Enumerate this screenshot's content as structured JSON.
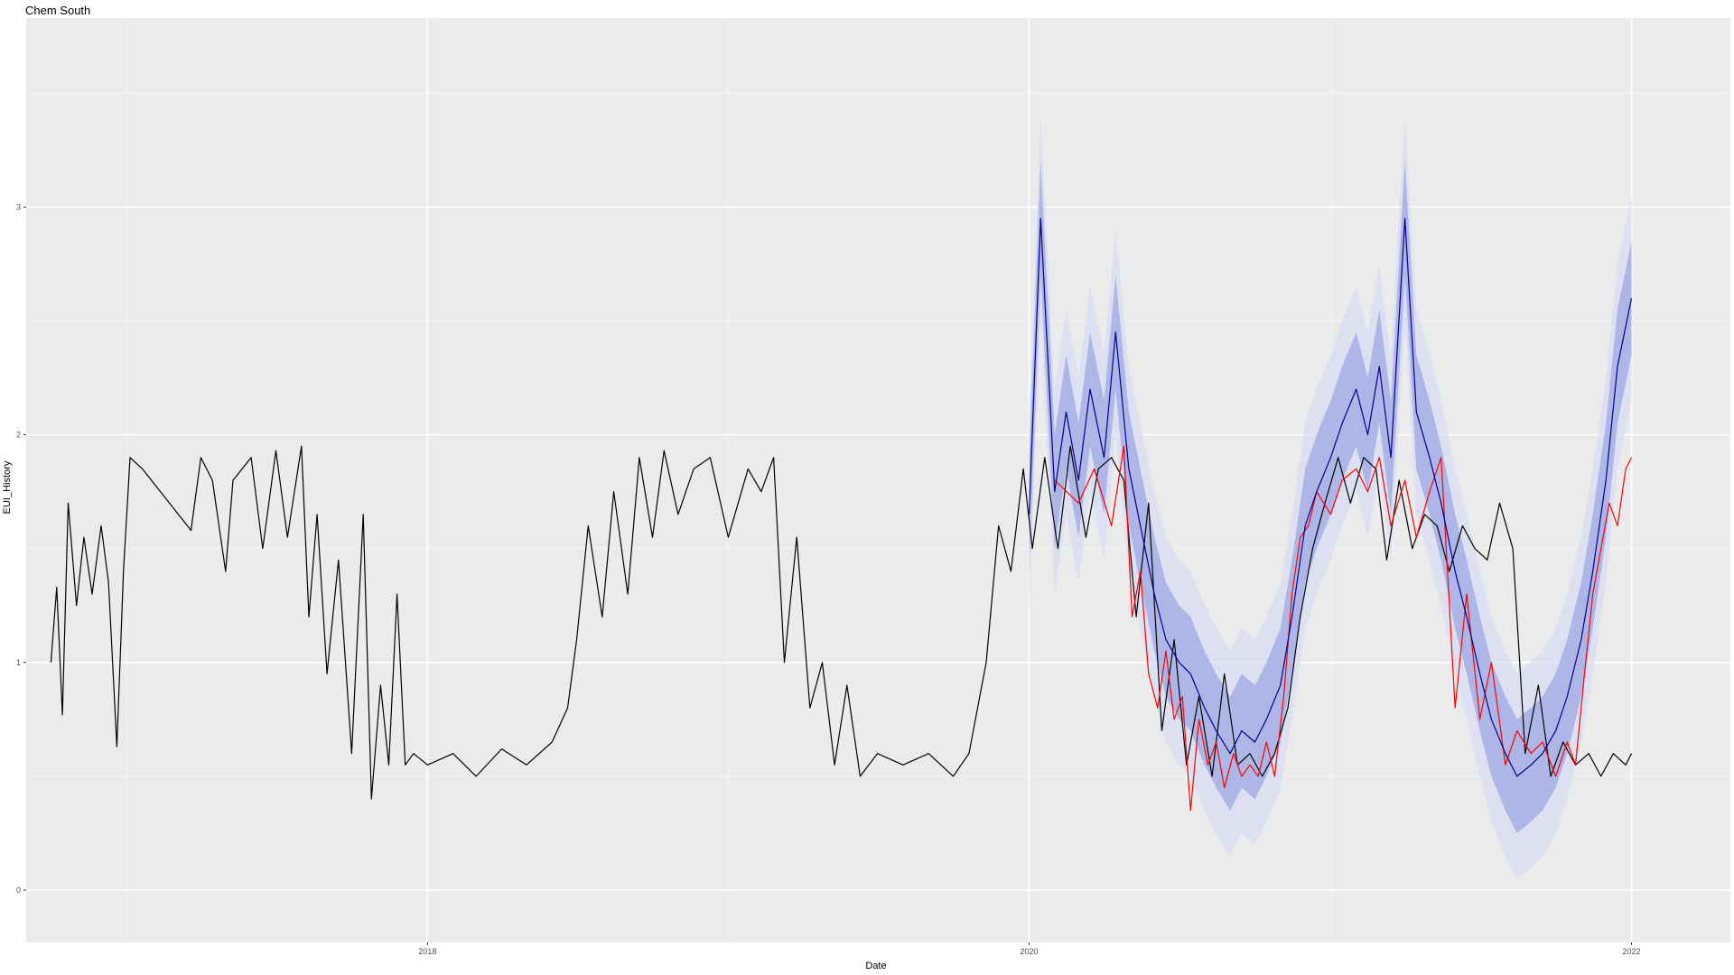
{
  "chart_data": {
    "type": "line",
    "title": "Chem South",
    "xlabel": "Date",
    "ylabel": "EUI_History",
    "x_range": [
      "2016-09-01",
      "2022-05-01"
    ],
    "ylim": [
      -0.23,
      3.83
    ],
    "x_ticks": [
      {
        "date": "2018-01-01",
        "label": "2018"
      },
      {
        "date": "2020-01-01",
        "label": "2020"
      },
      {
        "date": "2022-01-01",
        "label": "2022"
      }
    ],
    "x_minor_ticks": [
      "2017-01-01",
      "2019-01-01",
      "2021-01-01"
    ],
    "y_ticks": [
      0,
      1,
      2,
      3
    ],
    "y_minor_ticks": [
      0.5,
      1.5,
      2.5,
      3.5
    ],
    "grid": true,
    "background": "#ebebeb",
    "series": [
      {
        "color": "#000000",
        "role": "history",
        "points": [
          [
            "2016-10-01",
            1.0
          ],
          [
            "2016-10-08",
            1.33
          ],
          [
            "2016-10-15",
            0.77
          ],
          [
            "2016-10-22",
            1.7
          ],
          [
            "2016-11-01",
            1.25
          ],
          [
            "2016-11-10",
            1.55
          ],
          [
            "2016-11-20",
            1.3
          ],
          [
            "2016-12-01",
            1.6
          ],
          [
            "2016-12-10",
            1.35
          ],
          [
            "2016-12-20",
            0.63
          ],
          [
            "2016-12-28",
            1.4
          ],
          [
            "2017-01-05",
            1.9
          ],
          [
            "2017-01-20",
            1.85
          ],
          [
            "2017-03-20",
            1.58
          ],
          [
            "2017-04-01",
            1.9
          ],
          [
            "2017-04-15",
            1.8
          ],
          [
            "2017-05-01",
            1.4
          ],
          [
            "2017-05-10",
            1.8
          ],
          [
            "2017-06-01",
            1.9
          ],
          [
            "2017-06-15",
            1.5
          ],
          [
            "2017-07-01",
            1.93
          ],
          [
            "2017-07-15",
            1.55
          ],
          [
            "2017-08-01",
            1.95
          ],
          [
            "2017-08-10",
            1.2
          ],
          [
            "2017-08-20",
            1.65
          ],
          [
            "2017-09-01",
            0.95
          ],
          [
            "2017-09-15",
            1.45
          ],
          [
            "2017-10-01",
            0.6
          ],
          [
            "2017-10-15",
            1.65
          ],
          [
            "2017-10-25",
            0.4
          ],
          [
            "2017-11-05",
            0.9
          ],
          [
            "2017-11-15",
            0.55
          ],
          [
            "2017-11-25",
            1.3
          ],
          [
            "2017-12-05",
            0.55
          ],
          [
            "2017-12-15",
            0.6
          ],
          [
            "2018-01-01",
            0.55
          ],
          [
            "2018-02-01",
            0.6
          ],
          [
            "2018-03-01",
            0.5
          ],
          [
            "2018-04-01",
            0.62
          ],
          [
            "2018-05-01",
            0.55
          ],
          [
            "2018-06-01",
            0.65
          ],
          [
            "2018-06-20",
            0.8
          ],
          [
            "2018-07-01",
            1.1
          ],
          [
            "2018-07-15",
            1.6
          ],
          [
            "2018-08-01",
            1.2
          ],
          [
            "2018-08-15",
            1.75
          ],
          [
            "2018-09-01",
            1.3
          ],
          [
            "2018-09-15",
            1.9
          ],
          [
            "2018-10-01",
            1.55
          ],
          [
            "2018-10-15",
            1.93
          ],
          [
            "2018-11-01",
            1.65
          ],
          [
            "2018-11-20",
            1.85
          ],
          [
            "2018-12-10",
            1.9
          ],
          [
            "2019-01-01",
            1.55
          ],
          [
            "2019-01-25",
            1.85
          ],
          [
            "2019-02-10",
            1.75
          ],
          [
            "2019-02-25",
            1.9
          ],
          [
            "2019-03-10",
            1.0
          ],
          [
            "2019-03-25",
            1.55
          ],
          [
            "2019-04-10",
            0.8
          ],
          [
            "2019-04-25",
            1.0
          ],
          [
            "2019-05-10",
            0.55
          ],
          [
            "2019-05-25",
            0.9
          ],
          [
            "2019-06-10",
            0.5
          ],
          [
            "2019-07-01",
            0.6
          ],
          [
            "2019-08-01",
            0.55
          ],
          [
            "2019-09-01",
            0.6
          ],
          [
            "2019-10-01",
            0.5
          ],
          [
            "2019-10-20",
            0.6
          ],
          [
            "2019-11-10",
            1.0
          ],
          [
            "2019-11-25",
            1.6
          ],
          [
            "2019-12-10",
            1.4
          ],
          [
            "2019-12-25",
            1.85
          ],
          [
            "2020-01-05",
            1.5
          ],
          [
            "2020-01-20",
            1.9
          ],
          [
            "2020-02-05",
            1.5
          ],
          [
            "2020-02-20",
            1.95
          ],
          [
            "2020-03-10",
            1.55
          ],
          [
            "2020-03-25",
            1.85
          ],
          [
            "2020-04-10",
            1.9
          ],
          [
            "2020-04-25",
            1.8
          ],
          [
            "2020-05-10",
            1.2
          ],
          [
            "2020-05-25",
            1.7
          ],
          [
            "2020-06-10",
            0.7
          ],
          [
            "2020-06-25",
            1.1
          ],
          [
            "2020-07-10",
            0.55
          ],
          [
            "2020-07-25",
            0.85
          ],
          [
            "2020-08-10",
            0.5
          ],
          [
            "2020-08-25",
            0.95
          ],
          [
            "2020-09-10",
            0.55
          ],
          [
            "2020-09-25",
            0.6
          ],
          [
            "2020-10-10",
            0.5
          ],
          [
            "2020-10-25",
            0.6
          ],
          [
            "2020-11-10",
            0.8
          ],
          [
            "2020-11-25",
            1.2
          ],
          [
            "2020-12-10",
            1.5
          ],
          [
            "2020-12-25",
            1.7
          ],
          [
            "2021-01-10",
            1.9
          ],
          [
            "2021-01-25",
            1.7
          ],
          [
            "2021-02-10",
            1.9
          ],
          [
            "2021-02-25",
            1.85
          ],
          [
            "2021-03-10",
            1.45
          ],
          [
            "2021-03-25",
            1.8
          ],
          [
            "2021-04-10",
            1.5
          ],
          [
            "2021-04-25",
            1.65
          ],
          [
            "2021-05-10",
            1.6
          ],
          [
            "2021-05-25",
            1.4
          ],
          [
            "2021-06-10",
            1.6
          ],
          [
            "2021-06-25",
            1.5
          ],
          [
            "2021-07-10",
            1.45
          ],
          [
            "2021-07-25",
            1.7
          ],
          [
            "2021-08-10",
            1.5
          ],
          [
            "2021-08-25",
            0.6
          ],
          [
            "2021-09-10",
            0.9
          ],
          [
            "2021-09-25",
            0.5
          ],
          [
            "2021-10-10",
            0.65
          ],
          [
            "2021-10-25",
            0.55
          ],
          [
            "2021-11-10",
            0.6
          ],
          [
            "2021-11-25",
            0.5
          ],
          [
            "2021-12-10",
            0.6
          ],
          [
            "2021-12-25",
            0.55
          ],
          [
            "2022-01-01",
            0.6
          ]
        ]
      },
      {
        "color": "#ff0000",
        "role": "actual",
        "points": [
          [
            "2020-02-01",
            1.8
          ],
          [
            "2020-03-01",
            1.7
          ],
          [
            "2020-03-20",
            1.85
          ],
          [
            "2020-04-10",
            1.6
          ],
          [
            "2020-04-25",
            1.95
          ],
          [
            "2020-05-05",
            1.2
          ],
          [
            "2020-05-15",
            1.4
          ],
          [
            "2020-05-25",
            0.95
          ],
          [
            "2020-06-05",
            0.8
          ],
          [
            "2020-06-15",
            1.05
          ],
          [
            "2020-06-25",
            0.75
          ],
          [
            "2020-07-05",
            0.85
          ],
          [
            "2020-07-15",
            0.35
          ],
          [
            "2020-07-25",
            0.75
          ],
          [
            "2020-08-05",
            0.55
          ],
          [
            "2020-08-15",
            0.65
          ],
          [
            "2020-08-25",
            0.45
          ],
          [
            "2020-09-05",
            0.6
          ],
          [
            "2020-09-15",
            0.5
          ],
          [
            "2020-09-25",
            0.55
          ],
          [
            "2020-10-05",
            0.5
          ],
          [
            "2020-10-15",
            0.65
          ],
          [
            "2020-10-25",
            0.5
          ],
          [
            "2020-11-05",
            0.85
          ],
          [
            "2020-11-15",
            1.3
          ],
          [
            "2020-11-25",
            1.55
          ],
          [
            "2020-12-05",
            1.6
          ],
          [
            "2020-12-15",
            1.75
          ],
          [
            "2021-01-01",
            1.65
          ],
          [
            "2021-01-15",
            1.8
          ],
          [
            "2021-02-01",
            1.85
          ],
          [
            "2021-02-15",
            1.75
          ],
          [
            "2021-03-01",
            1.9
          ],
          [
            "2021-03-15",
            1.6
          ],
          [
            "2021-04-01",
            1.8
          ],
          [
            "2021-04-15",
            1.55
          ],
          [
            "2021-05-01",
            1.75
          ],
          [
            "2021-05-15",
            1.9
          ],
          [
            "2021-06-01",
            0.8
          ],
          [
            "2021-06-15",
            1.3
          ],
          [
            "2021-07-01",
            0.75
          ],
          [
            "2021-07-15",
            1.0
          ],
          [
            "2021-08-01",
            0.55
          ],
          [
            "2021-08-15",
            0.7
          ],
          [
            "2021-09-01",
            0.6
          ],
          [
            "2021-09-15",
            0.65
          ],
          [
            "2021-10-01",
            0.5
          ],
          [
            "2021-10-15",
            0.65
          ],
          [
            "2021-10-25",
            0.55
          ],
          [
            "2021-11-05",
            0.95
          ],
          [
            "2021-11-15",
            1.3
          ],
          [
            "2021-11-25",
            1.5
          ],
          [
            "2021-12-05",
            1.7
          ],
          [
            "2021-12-15",
            1.6
          ],
          [
            "2021-12-25",
            1.85
          ],
          [
            "2022-01-01",
            1.9
          ]
        ]
      },
      {
        "color": "#00008b",
        "role": "forecast",
        "band_inner": "#9ea8e3",
        "band_outer": "#d6dcf2",
        "points": [
          [
            "2020-01-01",
            1.65
          ],
          [
            "2020-01-15",
            2.95
          ],
          [
            "2020-02-01",
            1.75
          ],
          [
            "2020-02-15",
            2.1
          ],
          [
            "2020-03-01",
            1.8
          ],
          [
            "2020-03-15",
            2.2
          ],
          [
            "2020-04-01",
            1.9
          ],
          [
            "2020-04-15",
            2.45
          ],
          [
            "2020-05-01",
            1.85
          ],
          [
            "2020-05-15",
            1.6
          ],
          [
            "2020-06-01",
            1.3
          ],
          [
            "2020-06-15",
            1.1
          ],
          [
            "2020-07-01",
            1.0
          ],
          [
            "2020-07-15",
            0.95
          ],
          [
            "2020-08-01",
            0.8
          ],
          [
            "2020-08-15",
            0.7
          ],
          [
            "2020-09-01",
            0.6
          ],
          [
            "2020-09-15",
            0.7
          ],
          [
            "2020-10-01",
            0.65
          ],
          [
            "2020-10-15",
            0.75
          ],
          [
            "2020-11-01",
            0.9
          ],
          [
            "2020-11-15",
            1.2
          ],
          [
            "2020-12-01",
            1.6
          ],
          [
            "2020-12-15",
            1.75
          ],
          [
            "2021-01-01",
            1.9
          ],
          [
            "2021-01-15",
            2.05
          ],
          [
            "2021-02-01",
            2.2
          ],
          [
            "2021-02-15",
            2.0
          ],
          [
            "2021-03-01",
            2.3
          ],
          [
            "2021-03-15",
            1.9
          ],
          [
            "2021-04-01",
            2.95
          ],
          [
            "2021-04-15",
            2.1
          ],
          [
            "2021-05-01",
            1.9
          ],
          [
            "2021-05-15",
            1.7
          ],
          [
            "2021-06-01",
            1.4
          ],
          [
            "2021-06-15",
            1.2
          ],
          [
            "2021-07-01",
            0.95
          ],
          [
            "2021-07-15",
            0.75
          ],
          [
            "2021-08-01",
            0.6
          ],
          [
            "2021-08-15",
            0.5
          ],
          [
            "2021-09-01",
            0.55
          ],
          [
            "2021-09-15",
            0.6
          ],
          [
            "2021-10-01",
            0.7
          ],
          [
            "2021-10-15",
            0.85
          ],
          [
            "2021-11-01",
            1.1
          ],
          [
            "2021-11-15",
            1.4
          ],
          [
            "2021-12-01",
            1.8
          ],
          [
            "2021-12-15",
            2.3
          ],
          [
            "2022-01-01",
            2.6
          ]
        ]
      }
    ]
  }
}
